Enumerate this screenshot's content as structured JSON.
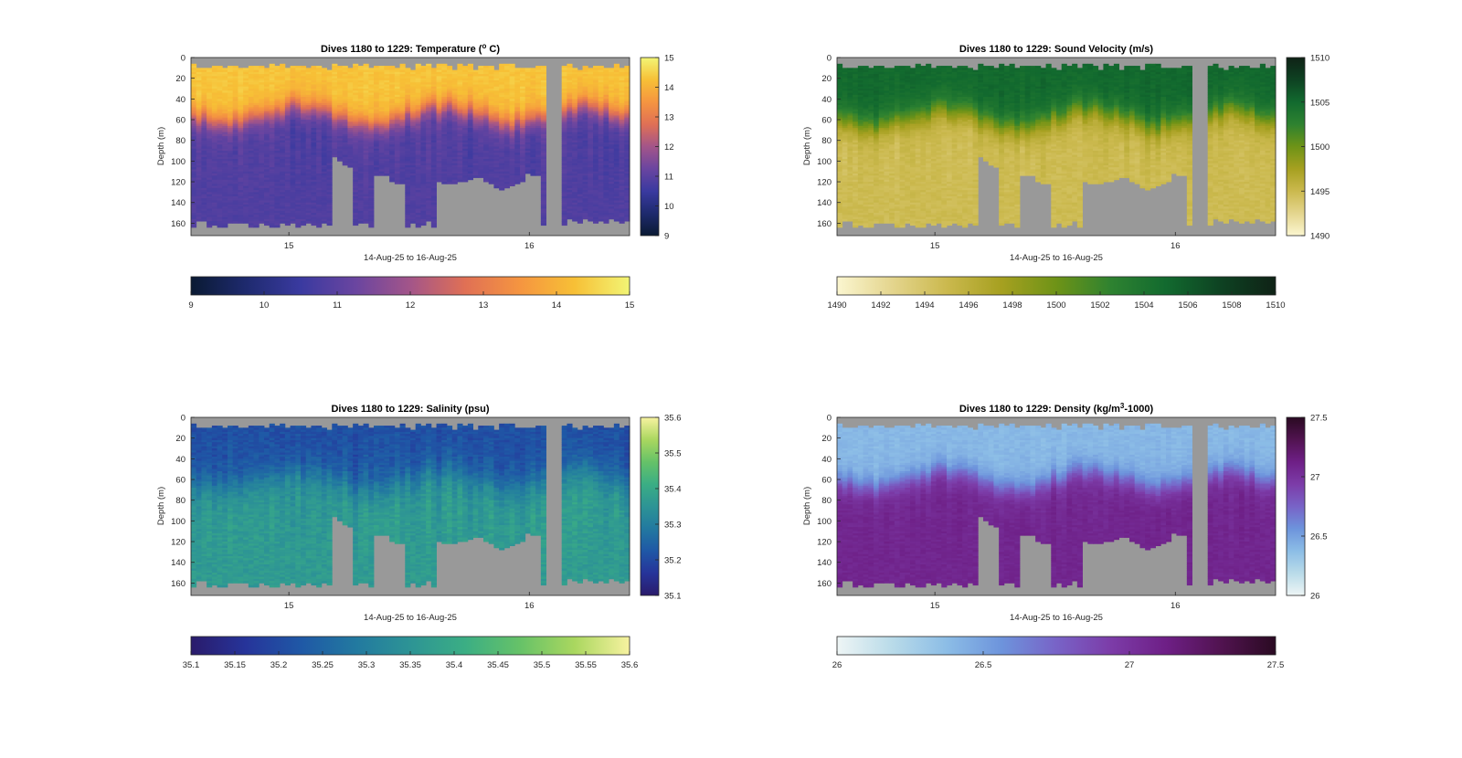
{
  "figure": {
    "background": "#ffffff",
    "axes_color": "#262626",
    "mask_color": "#999999"
  },
  "chart_data": [
    {
      "type": "heatmap",
      "id": "temperature",
      "title_main": "Dives 1180 to 1229: Temperature (",
      "title_sup": "o",
      "title_end": " C)",
      "xlabel": "14-Aug-25 to 16-Aug-25",
      "ylabel": "Depth (m)",
      "x_ticks": [
        "15",
        "16"
      ],
      "y_ticks": [
        "0",
        "20",
        "40",
        "60",
        "80",
        "100",
        "120",
        "140",
        "160"
      ],
      "ylim": [
        0,
        172
      ],
      "clim": [
        9,
        15
      ],
      "side_colorbar_ticks": [
        "9",
        "10",
        "11",
        "12",
        "13",
        "14",
        "15"
      ],
      "bottom_colorbar_ticks": [
        "9",
        "10",
        "11",
        "12",
        "13",
        "14",
        "15"
      ],
      "colormap": [
        "#0a1a33",
        "#1e2a6e",
        "#3a3aa0",
        "#6a45a0",
        "#a35589",
        "#e07055",
        "#f59540",
        "#f7c036",
        "#f2f575"
      ],
      "profile": {
        "surface": 14.3,
        "deep": 10.85,
        "mld": 55,
        "width": 25
      },
      "field_noise": 0.12,
      "column_noise": 0.25
    },
    {
      "type": "heatmap",
      "id": "sound-velocity",
      "title_main": "Dives 1180 to 1229: Sound Velocity (m/s)",
      "title_sup": "",
      "title_end": "",
      "xlabel": "14-Aug-25 to 16-Aug-25",
      "ylabel": "Depth (m)",
      "x_ticks": [
        "15",
        "16"
      ],
      "y_ticks": [
        "0",
        "20",
        "40",
        "60",
        "80",
        "100",
        "120",
        "140",
        "160"
      ],
      "ylim": [
        0,
        172
      ],
      "clim": [
        1490,
        1510
      ],
      "side_colorbar_ticks": [
        "1490",
        "1495",
        "1500",
        "1505",
        "1510"
      ],
      "bottom_colorbar_ticks": [
        "1490",
        "1492",
        "1494",
        "1496",
        "1498",
        "1500",
        "1502",
        "1504",
        "1506",
        "1508",
        "1510"
      ],
      "colormap": [
        "#fbf6d0",
        "#e4d58e",
        "#cbb94e",
        "#a6a020",
        "#6e9317",
        "#2e8230",
        "#126a2f",
        "#0e4222",
        "#0f2216"
      ],
      "profile": {
        "surface": 1505.0,
        "deep": 1494.8,
        "mld": 58,
        "width": 28
      },
      "field_noise": 0.4,
      "column_noise": 0.8
    },
    {
      "type": "heatmap",
      "id": "salinity",
      "title_main": "Dives 1180 to 1229: Salinity (psu)",
      "title_sup": "",
      "title_end": "",
      "xlabel": "14-Aug-25 to 16-Aug-25",
      "ylabel": "Depth (m)",
      "x_ticks": [
        "15",
        "16"
      ],
      "y_ticks": [
        "0",
        "20",
        "40",
        "60",
        "80",
        "100",
        "120",
        "140",
        "160"
      ],
      "ylim": [
        0,
        172
      ],
      "clim": [
        35.1,
        35.6
      ],
      "side_colorbar_ticks": [
        "35.1",
        "35.2",
        "35.3",
        "35.4",
        "35.5",
        "35.6"
      ],
      "bottom_colorbar_ticks": [
        "35.1",
        "35.15",
        "35.2",
        "35.25",
        "35.3",
        "35.35",
        "35.4",
        "35.45",
        "35.5",
        "35.55",
        "35.6"
      ],
      "colormap": [
        "#2a1b6b",
        "#26349a",
        "#1f58a6",
        "#2279a0",
        "#2d9495",
        "#3bae84",
        "#66c268",
        "#aad75f",
        "#f7f2a0"
      ],
      "profile": {
        "surface": 35.21,
        "deep": 35.365,
        "mld": 60,
        "width": 35
      },
      "field_noise": 0.02,
      "column_noise": 0.03
    },
    {
      "type": "heatmap",
      "id": "density",
      "title_main": "Dives 1180 to 1229: Density (kg/m",
      "title_sup": "3",
      "title_end": "-1000)",
      "xlabel": "14-Aug-25 to 16-Aug-25",
      "ylabel": "Depth (m)",
      "x_ticks": [
        "15",
        "16"
      ],
      "y_ticks": [
        "0",
        "20",
        "40",
        "60",
        "80",
        "100",
        "120",
        "140",
        "160"
      ],
      "ylim": [
        0,
        172
      ],
      "clim": [
        26,
        27.5
      ],
      "side_colorbar_ticks": [
        "26",
        "26.5",
        "27",
        "27.5"
      ],
      "bottom_colorbar_ticks": [
        "26",
        "26.5",
        "27",
        "27.5"
      ],
      "colormap": [
        "#eef5f5",
        "#b9dbe9",
        "#8cbde6",
        "#6d94dc",
        "#7863c7",
        "#7c3ca8",
        "#6e1f86",
        "#511350",
        "#2a0a22"
      ],
      "profile": {
        "surface": 26.4,
        "deep": 27.08,
        "mld": 60,
        "width": 25
      },
      "field_noise": 0.03,
      "column_noise": 0.05
    }
  ]
}
